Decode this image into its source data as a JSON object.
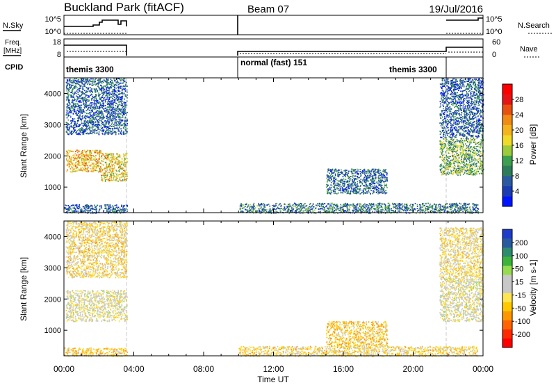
{
  "header": {
    "title": "Buckland Park (fitACF)",
    "beam": "Beam 07",
    "date": "19/Jul/2016"
  },
  "status_panel": {
    "nsky_label": "N.Sky",
    "nsky_ticks": [
      "10^5",
      "10^0"
    ],
    "nsearch_label": "N.Search",
    "nsearch_ticks": [
      "10^5",
      "10^0"
    ],
    "freq_label": "Freq.",
    "freq_unit": "[MHz]",
    "freq_ticks": [
      "18",
      "8"
    ],
    "nave_label": "Nave",
    "nave_ticks": [
      "60",
      "0"
    ],
    "cpid_label": "CPID",
    "cpid_segments": [
      "themis 3300",
      "normal (fast) 151",
      "themis 3300"
    ]
  },
  "chart_data": [
    {
      "type": "heatmap",
      "title": "",
      "xlabel": "",
      "ylabel": "Slant Range [km]",
      "x_ticks": [
        "00:00",
        "04:00",
        "08:00",
        "12:00",
        "16:00",
        "20:00",
        "00:00"
      ],
      "y_ticks": [
        "1000",
        "2000",
        "3000",
        "4000"
      ],
      "xlim_hours": [
        0,
        24
      ],
      "ylim_km": [
        180,
        4500
      ],
      "colorbar": {
        "label": "Power [dB]",
        "ticks": [
          "28",
          "24",
          "20",
          "16",
          "12",
          "8",
          "4"
        ],
        "range": [
          0,
          30
        ],
        "colors": [
          "#0014ff",
          "#1c3cb4",
          "#2c5aa0",
          "#2e7d5a",
          "#3ca050",
          "#9ccc3c",
          "#f0dc28",
          "#f5b41e",
          "#f08c14",
          "#e8500f",
          "#e61414",
          "#ff0000"
        ]
      },
      "scatter_regions": [
        {
          "t0": 0.1,
          "t1": 2.1,
          "r0": 1500,
          "r1": 2200,
          "value": 19
        },
        {
          "t0": 2.1,
          "t1": 3.6,
          "r0": 1200,
          "r1": 2100,
          "value": 17
        },
        {
          "t0": 0.0,
          "t1": 3.6,
          "r0": 180,
          "r1": 450,
          "value": 6
        },
        {
          "t0": 0.1,
          "t1": 3.6,
          "r0": 2700,
          "r1": 4500,
          "value": 6
        },
        {
          "t0": 10.0,
          "t1": 23.7,
          "r0": 180,
          "r1": 500,
          "value": 8
        },
        {
          "t0": 15.0,
          "t1": 18.5,
          "r0": 800,
          "r1": 1600,
          "value": 7
        },
        {
          "t0": 21.5,
          "t1": 24.0,
          "r0": 1400,
          "r1": 2600,
          "value": 12
        },
        {
          "t0": 21.5,
          "t1": 24.0,
          "r0": 2600,
          "r1": 4500,
          "value": 6
        }
      ]
    },
    {
      "type": "heatmap",
      "title": "",
      "xlabel": "Time UT",
      "ylabel": "Slant Range [km]",
      "x_ticks": [
        "00:00",
        "04:00",
        "08:00",
        "12:00",
        "16:00",
        "20:00",
        "00:00"
      ],
      "y_ticks": [
        "1000",
        "2000",
        "3000",
        "4000"
      ],
      "xlim_hours": [
        0,
        24
      ],
      "ylim_km": [
        180,
        4500
      ],
      "colorbar": {
        "label": "Velocity [m s-1]",
        "ticks": [
          "200",
          "100",
          "50",
          "15",
          "-15",
          "-50",
          "-100",
          "-200"
        ],
        "range": [
          -250,
          250
        ],
        "colors": [
          "#ff0000",
          "#ff2a00",
          "#ff6400",
          "#ff9600",
          "#ffc800",
          "#ffe650",
          "#c8c8c8",
          "#c8c8c8",
          "#96dc50",
          "#3cb43c",
          "#2d8c6e",
          "#285aa0",
          "#1e3cc8"
        ]
      },
      "scatter_regions": [
        {
          "t0": 0.1,
          "t1": 3.6,
          "r0": 1300,
          "r1": 2300,
          "value": 0
        },
        {
          "t0": 0.0,
          "t1": 3.6,
          "r0": 180,
          "r1": 450,
          "value": -60
        },
        {
          "t0": 0.1,
          "t1": 3.6,
          "r0": 2700,
          "r1": 4500,
          "value": -40
        },
        {
          "t0": 10.0,
          "t1": 23.7,
          "r0": 180,
          "r1": 500,
          "value": -40
        },
        {
          "t0": 15.0,
          "t1": 18.5,
          "r0": 500,
          "r1": 1300,
          "value": -60
        },
        {
          "t0": 21.5,
          "t1": 24.0,
          "r0": 1300,
          "r1": 2700,
          "value": 0
        },
        {
          "t0": 21.5,
          "t1": 24.0,
          "r0": 2700,
          "r1": 4300,
          "value": -30
        }
      ]
    }
  ]
}
